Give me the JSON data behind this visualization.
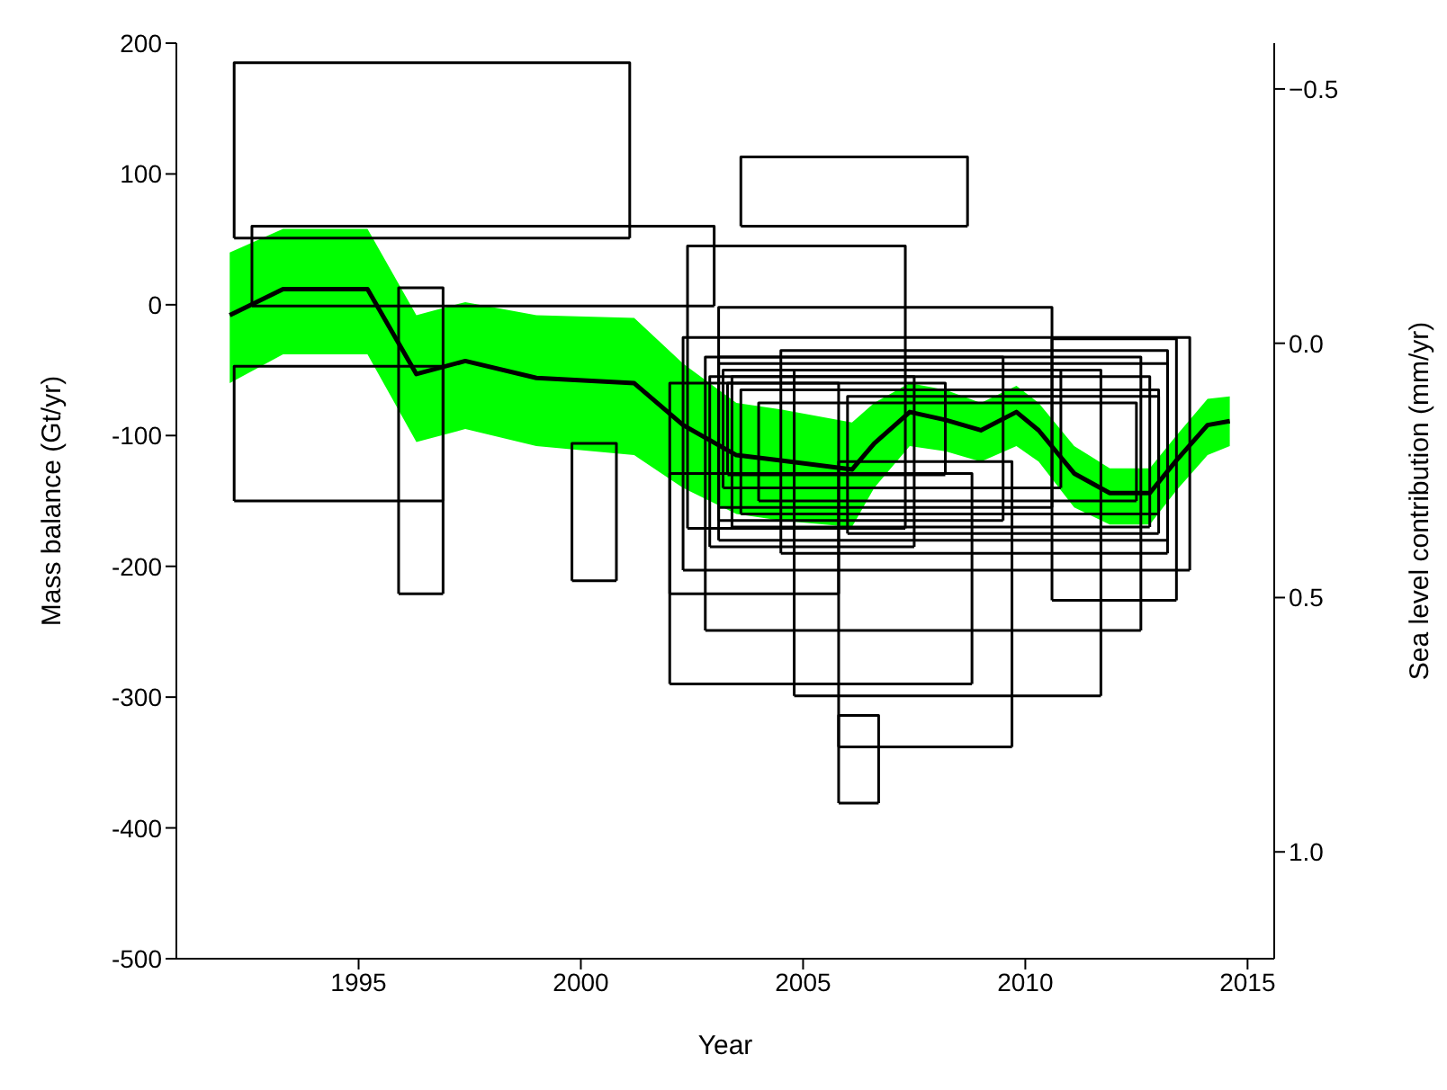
{
  "chart_data": {
    "type": "line",
    "xlabel": "Year",
    "ylabel": "Mass balance (Gt/yr)",
    "y2label": "Sea level contribution (mm/yr)",
    "xlim": [
      1990.9,
      2015.6
    ],
    "xticks": [
      1995,
      2000,
      2005,
      2010,
      2015
    ],
    "ylim": [
      -500,
      200
    ],
    "yticks": [
      -500,
      -400,
      -300,
      -200,
      -100,
      0,
      100,
      200
    ],
    "y2lim": [
      1.21,
      -0.59
    ],
    "y2ticks": [
      {
        "value": -0.5,
        "label": "−0.5"
      },
      {
        "value": 0,
        "label": "0.0"
      },
      {
        "value": 0.5,
        "label": "0.5"
      },
      {
        "value": 1,
        "label": "1.0"
      }
    ],
    "marker": "none",
    "line_style": "solid",
    "grid": false,
    "legend": false,
    "series": [
      {
        "color": "#000000",
        "x": [
          1992.1,
          1993.3,
          1995.2,
          1996.3,
          1997.4,
          1999.0,
          2001.2,
          2002.3,
          2003.5,
          2004.5,
          2006.1,
          2006.6,
          2007.4,
          2008.2,
          2009.0,
          2009.8,
          2010.3,
          2011.1,
          2011.9,
          2012.8,
          2013.4,
          2014.1,
          2014.6
        ],
        "values": [
          -8,
          12,
          12,
          -53,
          -43,
          -56,
          -60,
          -92,
          -115,
          -119,
          -126,
          -106,
          -82,
          -88,
          -96,
          -82,
          -96,
          -129,
          -144,
          -144,
          -119,
          -92,
          -89
        ],
        "upper": [
          40,
          58,
          58,
          -8,
          2,
          -8,
          -10,
          -45,
          -75,
          -80,
          -90,
          -75,
          -60,
          -65,
          -75,
          -62,
          -75,
          -108,
          -125,
          -125,
          -100,
          -72,
          -70
        ],
        "lower": [
          -60,
          -38,
          -38,
          -105,
          -95,
          -108,
          -115,
          -140,
          -160,
          -165,
          -170,
          -140,
          -108,
          -112,
          -120,
          -108,
          -120,
          -155,
          -168,
          -168,
          -142,
          -115,
          -108
        ]
      },
      {
        "color": "#000000",
        "x": [
          1992.2,
          1992.2,
          2001.1,
          2001.1
        ],
        "values": [
          51,
          185,
          185,
          51
        ]
      },
      {
        "color": "#000000",
        "x": [
          1992.2,
          2001.1
        ],
        "values": [
          51,
          51
        ]
      },
      {
        "color": "#000000",
        "x": [
          1992.6,
          1992.6,
          2003.0,
          2003.0
        ],
        "values": [
          -1,
          60,
          60,
          -1
        ]
      },
      {
        "color": "#000000",
        "x": [
          1992.6,
          2003.0
        ],
        "values": [
          -1,
          -1
        ]
      },
      {
        "color": "#000000",
        "x": [
          1992.2,
          1992.2,
          1996.9,
          1996.9
        ],
        "values": [
          -150,
          -47,
          -47,
          -150
        ]
      },
      {
        "color": "#000000",
        "x": [
          1992.2,
          1996.9
        ],
        "values": [
          -150,
          -150
        ]
      },
      {
        "color": "#000000",
        "x": [
          1995.9,
          1995.9,
          1996.9,
          1996.9
        ],
        "values": [
          -221,
          13,
          13,
          -221
        ]
      },
      {
        "color": "#000000",
        "x": [
          1995.9,
          1996.9
        ],
        "values": [
          -221,
          -221
        ]
      },
      {
        "color": "#000000",
        "x": [
          1999.8,
          1999.8,
          2000.8,
          2000.8
        ],
        "values": [
          -211,
          -106,
          -106,
          -211
        ]
      },
      {
        "color": "#000000",
        "x": [
          1999.8,
          2000.8
        ],
        "values": [
          -211,
          -211
        ]
      },
      {
        "color": "#000000",
        "x": [
          2003.6,
          2003.6,
          2008.7,
          2008.7
        ],
        "values": [
          60,
          113,
          113,
          60
        ]
      },
      {
        "color": "#000000",
        "x": [
          2003.6,
          2008.7
        ],
        "values": [
          60,
          60
        ]
      },
      {
        "color": "#000000",
        "x": [
          2002.4,
          2002.4,
          2007.3,
          2007.3
        ],
        "values": [
          -171,
          45,
          45,
          -171
        ]
      },
      {
        "color": "#000000",
        "x": [
          2002.4,
          2007.3
        ],
        "values": [
          -171,
          -171
        ]
      },
      {
        "color": "#000000",
        "x": [
          2002.0,
          2002.0,
          2008.8,
          2008.8
        ],
        "values": [
          -290,
          -129,
          -129,
          -290
        ]
      },
      {
        "color": "#000000",
        "x": [
          2002.0,
          2008.8
        ],
        "values": [
          -290,
          -290
        ]
      },
      {
        "color": "#000000",
        "x": [
          2003.1,
          2003.1,
          2010.6,
          2010.6
        ],
        "values": [
          -155,
          -2,
          -2,
          -155
        ]
      },
      {
        "color": "#000000",
        "x": [
          2003.1,
          2010.6
        ],
        "values": [
          -155,
          -155
        ]
      },
      {
        "color": "#000000",
        "x": [
          2004.8,
          2004.8,
          2011.7,
          2011.7
        ],
        "values": [
          -299,
          -50,
          -50,
          -299
        ]
      },
      {
        "color": "#000000",
        "x": [
          2004.8,
          2011.7
        ],
        "values": [
          -299,
          -299
        ]
      },
      {
        "color": "#000000",
        "x": [
          2005.8,
          2005.8,
          2009.7,
          2009.7
        ],
        "values": [
          -338,
          -120,
          -120,
          -338
        ]
      },
      {
        "color": "#000000",
        "x": [
          2005.8,
          2009.7
        ],
        "values": [
          -338,
          -338
        ]
      },
      {
        "color": "#000000",
        "x": [
          2005.8,
          2005.8,
          2006.7,
          2006.7
        ],
        "values": [
          -381,
          -314,
          -314,
          -381
        ]
      },
      {
        "color": "#000000",
        "x": [
          2005.8,
          2006.7
        ],
        "values": [
          -381,
          -381
        ]
      },
      {
        "color": "#000000",
        "x": [
          2002.8,
          2002.8,
          2012.6,
          2012.6
        ],
        "values": [
          -249,
          -40,
          -40,
          -249
        ]
      },
      {
        "color": "#000000",
        "x": [
          2002.8,
          2012.6
        ],
        "values": [
          -249,
          -249
        ]
      },
      {
        "color": "#000000",
        "x": [
          2010.6,
          2010.6,
          2013.4,
          2013.4
        ],
        "values": [
          -226,
          -26,
          -26,
          -226
        ]
      },
      {
        "color": "#000000",
        "x": [
          2010.6,
          2013.4
        ],
        "values": [
          -226,
          -226
        ]
      },
      {
        "color": "#000000",
        "x": [
          2002.3,
          2002.3,
          2013.7,
          2013.7
        ],
        "values": [
          -203,
          -25,
          -25,
          -203
        ]
      },
      {
        "color": "#000000",
        "x": [
          2002.3,
          2013.7
        ],
        "values": [
          -203,
          -203
        ]
      },
      {
        "color": "#000000",
        "x": [
          2002.0,
          2002.0,
          2005.8,
          2005.8
        ],
        "values": [
          -221,
          -60,
          -60,
          -221
        ]
      },
      {
        "color": "#000000",
        "x": [
          2002.0,
          2005.8
        ],
        "values": [
          -221,
          -221
        ]
      },
      {
        "color": "#000000",
        "x": [
          2003.1,
          2003.1,
          2013.2,
          2013.2
        ],
        "values": [
          -180,
          -45,
          -45,
          -180
        ]
      },
      {
        "color": "#000000",
        "x": [
          2003.1,
          2013.2
        ],
        "values": [
          -180,
          -180
        ]
      },
      {
        "color": "#000000",
        "x": [
          2003.4,
          2003.4,
          2012.8,
          2012.8
        ],
        "values": [
          -170,
          -55,
          -55,
          -170
        ]
      },
      {
        "color": "#000000",
        "x": [
          2003.4,
          2012.8
        ],
        "values": [
          -170,
          -170
        ]
      },
      {
        "color": "#000000",
        "x": [
          2003.6,
          2003.6,
          2013.0,
          2013.0
        ],
        "values": [
          -160,
          -65,
          -65,
          -160
        ]
      },
      {
        "color": "#000000",
        "x": [
          2003.6,
          2013.0
        ],
        "values": [
          -160,
          -160
        ]
      },
      {
        "color": "#000000",
        "x": [
          2004.0,
          2004.0,
          2012.5,
          2012.5
        ],
        "values": [
          -150,
          -75,
          -75,
          -150
        ]
      },
      {
        "color": "#000000",
        "x": [
          2004.0,
          2012.5
        ],
        "values": [
          -150,
          -150
        ]
      },
      {
        "color": "#000000",
        "x": [
          2003.2,
          2003.2,
          2010.8,
          2010.8
        ],
        "values": [
          -140,
          -50,
          -50,
          -140
        ]
      },
      {
        "color": "#000000",
        "x": [
          2003.2,
          2010.8
        ],
        "values": [
          -140,
          -140
        ]
      },
      {
        "color": "#000000",
        "x": [
          2004.5,
          2004.5,
          2013.2,
          2013.2
        ],
        "values": [
          -190,
          -35,
          -35,
          -190
        ]
      },
      {
        "color": "#000000",
        "x": [
          2004.5,
          2013.2
        ],
        "values": [
          -190,
          -190
        ]
      },
      {
        "color": "#000000",
        "x": [
          2003.3,
          2003.3,
          2008.2,
          2008.2
        ],
        "values": [
          -130,
          -60,
          -60,
          -130
        ]
      },
      {
        "color": "#000000",
        "x": [
          2003.3,
          2008.2
        ],
        "values": [
          -130,
          -130
        ]
      },
      {
        "color": "#000000",
        "x": [
          2006.0,
          2006.0,
          2013.0,
          2013.0
        ],
        "values": [
          -175,
          -70,
          -70,
          -175
        ]
      },
      {
        "color": "#000000",
        "x": [
          2006.0,
          2013.0
        ],
        "values": [
          -175,
          -175
        ]
      },
      {
        "color": "#000000",
        "x": [
          2003.1,
          2003.1,
          2009.5,
          2009.5
        ],
        "values": [
          -165,
          -40,
          -40,
          -165
        ]
      },
      {
        "color": "#000000",
        "x": [
          2003.1,
          2009.5
        ],
        "values": [
          -165,
          -165
        ]
      },
      {
        "color": "#000000",
        "x": [
          2002.9,
          2002.9,
          2007.5,
          2007.5
        ],
        "values": [
          -185,
          -55,
          -55,
          -185
        ]
      },
      {
        "color": "#000000",
        "x": [
          2002.9,
          2007.5
        ],
        "values": [
          -185,
          -185
        ]
      }
    ]
  }
}
